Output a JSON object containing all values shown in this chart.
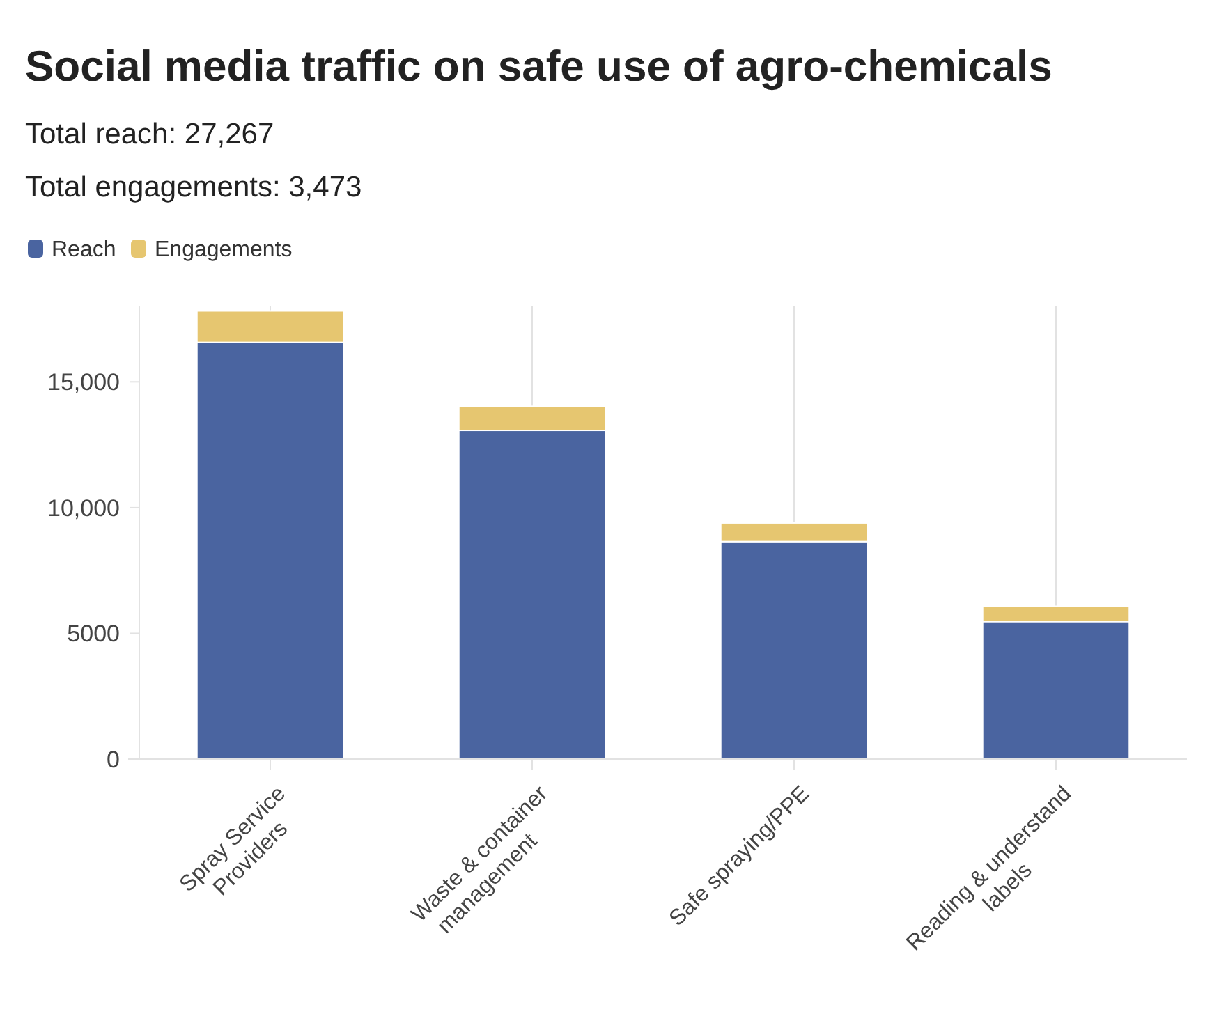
{
  "chart_data": {
    "type": "bar",
    "title": "Social media traffic on safe use of agro-chemicals",
    "subtitle": "Total reach: 27,267\nTotal engagements: 3,473",
    "categories": [
      "Spray Service Providers",
      "Waste & container management",
      "Safe spraying/PPE",
      "Reading & understand labels"
    ],
    "series": [
      {
        "name": "Reach",
        "color": "#4a64a0",
        "values": [
          16570,
          13070,
          8650,
          5470
        ]
      },
      {
        "name": "Engagements",
        "color": "#e6c670",
        "values": [
          1250,
          960,
          740,
          610
        ]
      }
    ],
    "stacked": true,
    "ylim": [
      0,
      18000
    ],
    "yticks": [
      {
        "value": 0,
        "label": "0"
      },
      {
        "value": 5000,
        "label": "5000"
      },
      {
        "value": 10000,
        "label": "10,000"
      },
      {
        "value": 15000,
        "label": "15,000"
      }
    ],
    "grid": "x",
    "legend": "top left"
  }
}
